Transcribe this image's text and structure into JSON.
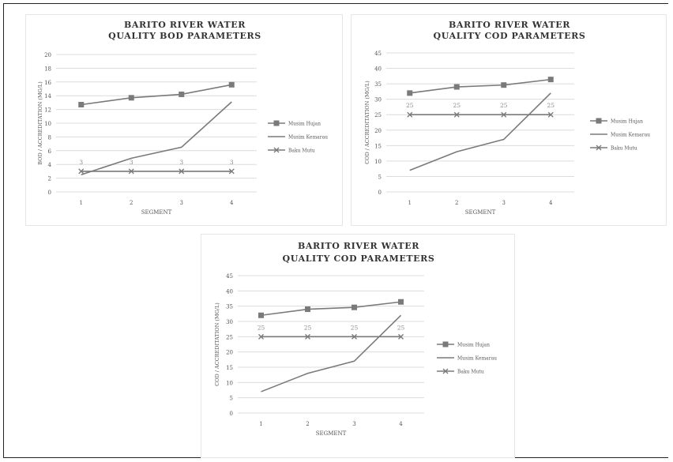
{
  "charts": [
    {
      "title": [
        "BARITO RIVER WATER",
        "QUALITY BOD PARAMETERS"
      ],
      "chart_data": {
        "type": "line",
        "categories": [
          "1",
          "2",
          "3",
          "4"
        ],
        "xlabel": "SEGMENT",
        "ylabel": "BOD / ACCREDITATION (MG/L)",
        "ylim": [
          0,
          20
        ],
        "yticks": [
          0,
          2,
          4,
          6,
          8,
          10,
          12,
          14,
          16,
          18,
          20
        ],
        "grid": true,
        "legend_position": "right",
        "series": [
          {
            "name": "Musim Hujan",
            "values": [
              12.7,
              13.7,
              14.2,
              15.6
            ],
            "marker": "square",
            "labels": [
              "",
              "",
              "",
              ""
            ]
          },
          {
            "name": "Musim Kemarau",
            "values": [
              2.5,
              4.9,
              6.5,
              13.1
            ],
            "marker": "none",
            "labels": [
              "",
              "",
              "",
              ""
            ]
          },
          {
            "name": "Baku Mutu",
            "values": [
              3,
              3,
              3,
              3
            ],
            "marker": "x",
            "labels": [
              "3",
              "3",
              "3",
              "3"
            ]
          }
        ]
      }
    },
    {
      "title": [
        "BARITO RIVER WATER",
        "QUALITY COD PARAMETERS"
      ],
      "chart_data": {
        "type": "line",
        "categories": [
          "1",
          "2",
          "3",
          "4"
        ],
        "xlabel": "SEGMENT",
        "ylabel": "COD / ACCREDITATION (MG/L)",
        "ylim": [
          0,
          45
        ],
        "yticks": [
          0,
          5,
          10,
          15,
          20,
          25,
          30,
          35,
          40,
          45
        ],
        "grid": true,
        "legend_position": "right",
        "series": [
          {
            "name": "Musim Hujan",
            "values": [
              32,
              34,
              34.6,
              36.4
            ],
            "marker": "square",
            "labels": [
              "",
              "",
              "",
              ""
            ]
          },
          {
            "name": "Musim Kemarau",
            "values": [
              7,
              13,
              17,
              32
            ],
            "marker": "none",
            "labels": [
              "",
              "",
              "",
              ""
            ]
          },
          {
            "name": "Baku Mutu",
            "values": [
              25,
              25,
              25,
              25
            ],
            "marker": "x",
            "labels": [
              "25",
              "25",
              "25",
              "25"
            ]
          }
        ]
      }
    },
    {
      "title": [
        "BARITO RIVER WATER",
        "QUALITY COD PARAMETERS"
      ],
      "chart_data": {
        "type": "line",
        "categories": [
          "1",
          "2",
          "3",
          "4"
        ],
        "xlabel": "SEGMENT",
        "ylabel": "COD / ACCREDITATION (MG/L)",
        "ylim": [
          0,
          45
        ],
        "yticks": [
          0,
          5,
          10,
          15,
          20,
          25,
          30,
          35,
          40,
          45
        ],
        "grid": true,
        "legend_position": "right",
        "series": [
          {
            "name": "Musim Hujan",
            "values": [
              32,
              34,
              34.6,
              36.4
            ],
            "marker": "square",
            "labels": [
              "",
              "",
              "",
              ""
            ]
          },
          {
            "name": "Musim Kemarau",
            "values": [
              7,
              13,
              17,
              32
            ],
            "marker": "none",
            "labels": [
              "",
              "",
              "",
              ""
            ]
          },
          {
            "name": "Baku Mutu",
            "values": [
              25,
              25,
              25,
              25
            ],
            "marker": "x",
            "labels": [
              "25",
              "25",
              "25",
              "25"
            ]
          }
        ]
      }
    }
  ],
  "colors": {
    "line": "#7a7a7a",
    "grid": "#dcdcdc",
    "text": "#555555",
    "title": "#333333"
  }
}
